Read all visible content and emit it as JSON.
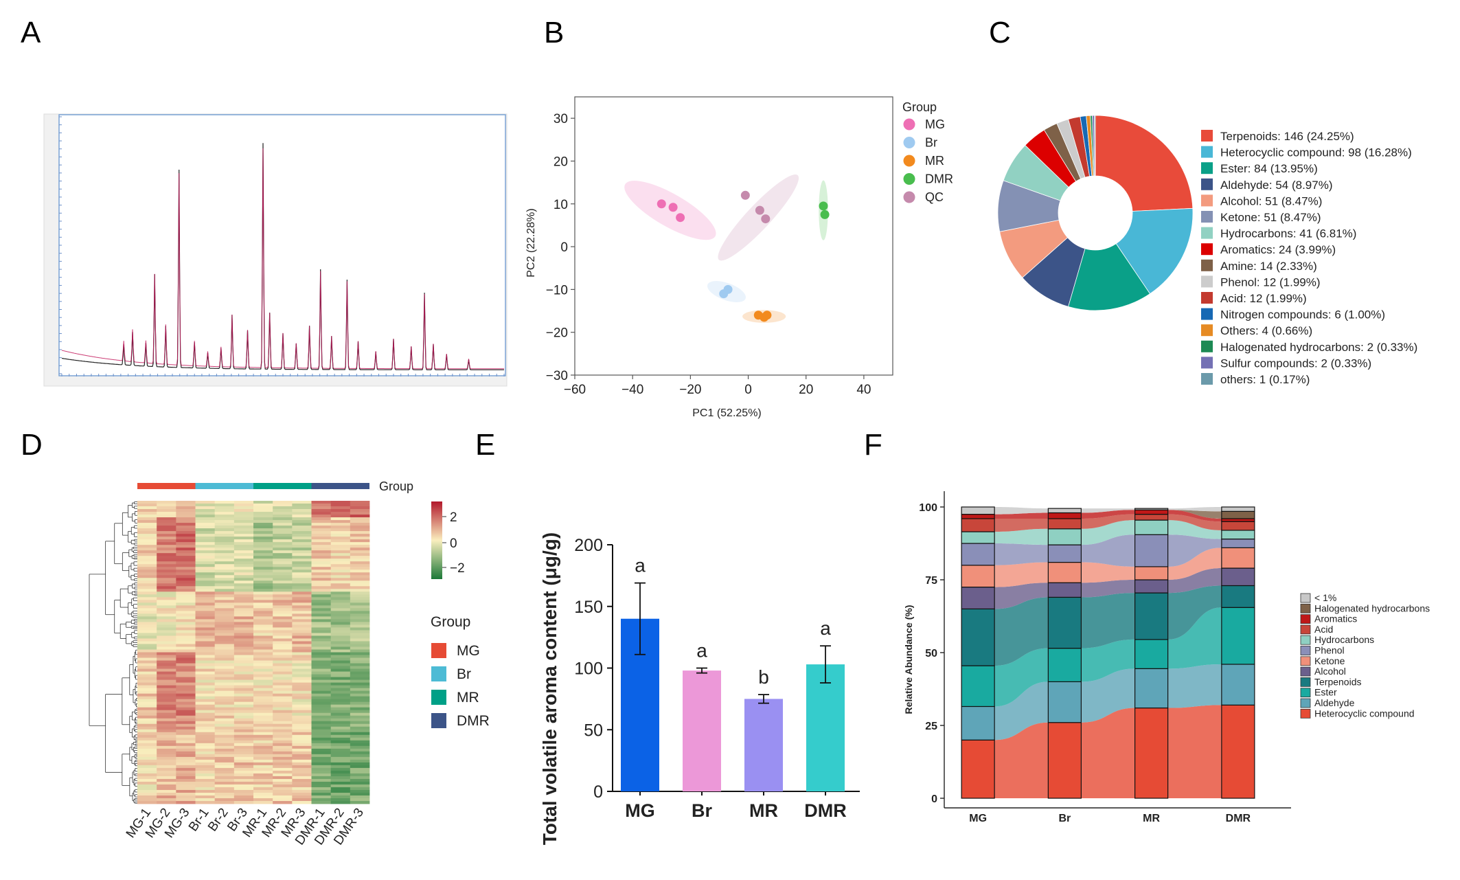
{
  "panels": {
    "A": "A",
    "B": "B",
    "C": "C",
    "D": "D",
    "E": "E",
    "F": "F"
  },
  "chart_data": [
    {
      "panel": "A",
      "type": "line",
      "description_visible": "chromatogram",
      "peaks": [
        {
          "x": 0.14,
          "y": 0.08
        },
        {
          "x": 0.16,
          "y": 0.13
        },
        {
          "x": 0.19,
          "y": 0.09
        },
        {
          "x": 0.21,
          "y": 0.36
        },
        {
          "x": 0.235,
          "y": 0.16
        },
        {
          "x": 0.265,
          "y": 0.77
        },
        {
          "x": 0.3,
          "y": 0.1
        },
        {
          "x": 0.33,
          "y": 0.06
        },
        {
          "x": 0.36,
          "y": 0.08
        },
        {
          "x": 0.385,
          "y": 0.21
        },
        {
          "x": 0.42,
          "y": 0.15
        },
        {
          "x": 0.455,
          "y": 0.88
        },
        {
          "x": 0.47,
          "y": 0.22
        },
        {
          "x": 0.5,
          "y": 0.14
        },
        {
          "x": 0.53,
          "y": 0.1
        },
        {
          "x": 0.56,
          "y": 0.17
        },
        {
          "x": 0.585,
          "y": 0.39
        },
        {
          "x": 0.61,
          "y": 0.13
        },
        {
          "x": 0.645,
          "y": 0.35
        },
        {
          "x": 0.67,
          "y": 0.11
        },
        {
          "x": 0.71,
          "y": 0.07
        },
        {
          "x": 0.75,
          "y": 0.12
        },
        {
          "x": 0.79,
          "y": 0.09
        },
        {
          "x": 0.82,
          "y": 0.3
        },
        {
          "x": 0.84,
          "y": 0.1
        },
        {
          "x": 0.87,
          "y": 0.06
        },
        {
          "x": 0.92,
          "y": 0.04
        }
      ]
    },
    {
      "panel": "B",
      "type": "scatter",
      "xlabel": "PC1 (52.25%)",
      "ylabel": "PC2 (22.28%)",
      "xlim": [
        -60,
        50
      ],
      "ylim": [
        -30,
        35
      ],
      "xticks": [
        -60,
        -40,
        -20,
        0,
        20,
        40
      ],
      "yticks": [
        -30,
        -20,
        -10,
        0,
        10,
        20,
        30
      ],
      "xtick_labels": [
        "−60",
        "−40",
        "−20",
        "0",
        "20",
        "40"
      ],
      "ytick_labels": [
        "−30",
        "−20",
        "−10",
        "0",
        "10",
        "20",
        "30"
      ],
      "legend_title": "Group",
      "legend_position": "right",
      "series": [
        {
          "name": "MG",
          "color": "#ee6fb4",
          "points": [
            [
              -30,
              10
            ],
            [
              -26,
              9.2
            ],
            [
              -23.5,
              6.8
            ]
          ],
          "ellipse": {
            "cx": -27,
            "cy": 8.5,
            "rx": 18,
            "ry": 3.8,
            "angle": 30
          }
        },
        {
          "name": "Br",
          "color": "#9fcaf0",
          "points": [
            [
              -8.5,
              -11
            ],
            [
              -7,
              -10
            ]
          ],
          "ellipse": {
            "cx": -7.5,
            "cy": -10.5,
            "rx": 7,
            "ry": 2,
            "angle": 20
          }
        },
        {
          "name": "MR",
          "color": "#f28a1e",
          "points": [
            [
              3.5,
              -16
            ],
            [
              5.5,
              -16.5
            ],
            [
              6.5,
              -16
            ]
          ],
          "ellipse": {
            "cx": 5.5,
            "cy": -16.3,
            "rx": 7.5,
            "ry": 1.5,
            "angle": 0
          }
        },
        {
          "name": "DMR",
          "color": "#49bd4e",
          "points": [
            [
              26,
              9.5
            ],
            [
              26.5,
              7.5
            ]
          ],
          "ellipse": {
            "cx": 26,
            "cy": 8.5,
            "rx": 1.6,
            "ry": 7,
            "angle": 0
          }
        },
        {
          "name": "QC",
          "color": "#c58aac",
          "points": [
            [
              -1,
              12
            ],
            [
              4,
              8.5
            ],
            [
              6,
              6.5
            ]
          ],
          "ellipse": {
            "cx": 3.5,
            "cy": 6.8,
            "rx": 20,
            "ry": 2.8,
            "angle": -47
          }
        }
      ]
    },
    {
      "panel": "C",
      "type": "pie",
      "slices": [
        {
          "label": "Terpenoids: 146 (24.25%)",
          "value": 24.25,
          "color": "#e84b3a"
        },
        {
          "label": "Heterocyclic compound: 98 (16.28%)",
          "value": 16.28,
          "color": "#49b7d6"
        },
        {
          "label": "Ester: 84 (13.95%)",
          "value": 13.95,
          "color": "#0aa088"
        },
        {
          "label": "Aldehyde: 54 (8.97%)",
          "value": 8.97,
          "color": "#3c5488"
        },
        {
          "label": "Alcohol: 51 (8.47%)",
          "value": 8.47,
          "color": "#f39b7f"
        },
        {
          "label": "Ketone: 51 (8.47%)",
          "value": 8.47,
          "color": "#8491b4"
        },
        {
          "label": "Hydrocarbons: 41 (6.81%)",
          "value": 6.81,
          "color": "#91d1c2"
        },
        {
          "label": "Aromatics: 24 (3.99%)",
          "value": 3.99,
          "color": "#dc0000"
        },
        {
          "label": "Amine: 14 (2.33%)",
          "value": 2.33,
          "color": "#7e6148"
        },
        {
          "label": "Phenol: 12 (1.99%)",
          "value": 1.99,
          "color": "#cccccc"
        },
        {
          "label": "Acid: 12 (1.99%)",
          "value": 1.99,
          "color": "#c33a2f"
        },
        {
          "label": "Nitrogen compounds: 6 (1.00%)",
          "value": 1.0,
          "color": "#1769b4"
        },
        {
          "label": "Others: 4 (0.66%)",
          "value": 0.66,
          "color": "#e68b24"
        },
        {
          "label": "Halogenated hydrocarbons: 2 (0.33%)",
          "value": 0.33,
          "color": "#1d8a54"
        },
        {
          "label": "Sulfur compounds: 2 (0.33%)",
          "value": 0.33,
          "color": "#7471b4"
        },
        {
          "label": "others: 1 (0.17%)",
          "value": 0.17,
          "color": "#6b9aaa"
        }
      ]
    },
    {
      "panel": "D",
      "type": "heatmap",
      "columns": [
        "MG-1",
        "MG-2",
        "MG-3",
        "Br-1",
        "Br-2",
        "Br-3",
        "MR-1",
        "MR-2",
        "MR-3",
        "DMR-1",
        "DMR-2",
        "DMR-3"
      ],
      "group_bar_label": "Group",
      "scale_ticks": [
        "2",
        "0",
        "−2"
      ],
      "legend_title": "Group",
      "groups": [
        {
          "name": "MG",
          "color": "#e64b35"
        },
        {
          "name": "Br",
          "color": "#4dbbd5"
        },
        {
          "name": "MR",
          "color": "#00a087"
        },
        {
          "name": "DMR",
          "color": "#3c5488"
        }
      ]
    },
    {
      "panel": "E",
      "type": "bar",
      "ylabel": "Total volatile aroma content (μg/g)",
      "ylim": [
        0,
        200
      ],
      "yticks": [
        0,
        50,
        100,
        150,
        200
      ],
      "categories": [
        "MG",
        "Br",
        "MR",
        "DMR"
      ],
      "values": [
        140,
        98,
        75,
        103
      ],
      "errors": [
        29,
        2,
        3.5,
        15
      ],
      "letters": [
        "a",
        "a",
        "b",
        "a"
      ],
      "colors": [
        "#0b62e6",
        "#ec98d8",
        "#9a90f2",
        "#35cccc"
      ]
    },
    {
      "panel": "F",
      "type": "bar",
      "stacked": true,
      "ylabel": "Relative Abundance (%)",
      "ylim": [
        0,
        100
      ],
      "yticks": [
        0,
        25,
        50,
        75,
        100
      ],
      "categories": [
        "MG",
        "Br",
        "MR",
        "DMR"
      ],
      "legend_position": "right",
      "series": [
        {
          "name": "Heterocyclic compound",
          "color": "#e64b35",
          "values": [
            20,
            26,
            31,
            32
          ]
        },
        {
          "name": "Aldehyde",
          "color": "#5fa5b8",
          "values": [
            11.5,
            14,
            13.5,
            14
          ]
        },
        {
          "name": "Ester",
          "color": "#19aaa0",
          "values": [
            14,
            11.5,
            10,
            19.5
          ]
        },
        {
          "name": "Terpenoids",
          "color": "#197a80",
          "values": [
            19.5,
            17.5,
            16,
            7.5
          ]
        },
        {
          "name": "Alcohol",
          "color": "#6b5f8c",
          "values": [
            7.5,
            5,
            4.5,
            6
          ]
        },
        {
          "name": "Ketone",
          "color": "#f0907a",
          "values": [
            7.5,
            7,
            4.5,
            7
          ]
        },
        {
          "name": "Phenol",
          "color": "#8a8fb8",
          "values": [
            7.5,
            6,
            11,
            3
          ]
        },
        {
          "name": "Hydrocarbons",
          "color": "#8fd0c2",
          "values": [
            4,
            5.5,
            5,
            3
          ]
        },
        {
          "name": "Acid",
          "color": "#c8463a",
          "values": [
            4.5,
            3.5,
            2,
            3
          ]
        },
        {
          "name": "Aromatics",
          "color": "#bf1818",
          "values": [
            1.5,
            2,
            1.5,
            1
          ]
        },
        {
          "name": "Halogenated hydrocarbons",
          "color": "#7e6148",
          "values": [
            0,
            0,
            0,
            2.5
          ]
        },
        {
          "name": "< 1%",
          "color": "#c8c8c8",
          "values": [
            2.5,
            1.5,
            0.5,
            1.5
          ]
        }
      ]
    }
  ]
}
